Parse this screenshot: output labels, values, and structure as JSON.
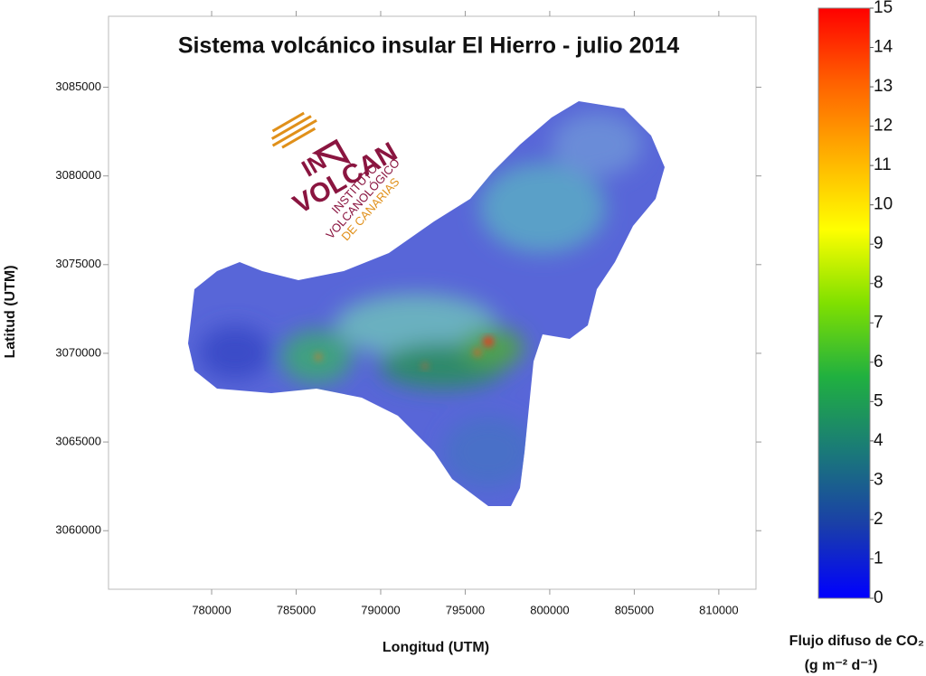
{
  "chart_data": {
    "type": "map",
    "title": "Sistema volcánico insular El Hierro - julio 2014",
    "x_label": "Longitud (UTM)",
    "y_label": "Latitud (UTM)",
    "xlim": [
      773900,
      812200
    ],
    "xticks": [
      780000,
      785000,
      790000,
      795000,
      800000,
      805000,
      810000
    ],
    "ylim": [
      3056700,
      3089000
    ],
    "yticks": [
      3060000,
      3065000,
      3070000,
      3075000,
      3080000,
      3085000
    ],
    "colorbar": {
      "label": "Flujo difuso de CO₂",
      "units": "(g m⁻² d⁻¹)",
      "lim": [
        0,
        15
      ],
      "ticks": [
        0,
        1,
        2,
        3,
        4,
        5,
        6,
        7,
        8,
        9,
        10,
        11,
        12,
        13,
        14,
        15
      ],
      "colors": [
        "#0000ff",
        "#1a3fa8",
        "#1a7a78",
        "#20b040",
        "#80e000",
        "#ffff00",
        "#ffb000",
        "#ff6000",
        "#ff0000"
      ]
    },
    "logo": {
      "mark": "IN",
      "name": "VOLCAN",
      "lines": [
        "INSTITUTO",
        "VOLCANOLÓGICO",
        "DE CANARIAS"
      ]
    }
  }
}
